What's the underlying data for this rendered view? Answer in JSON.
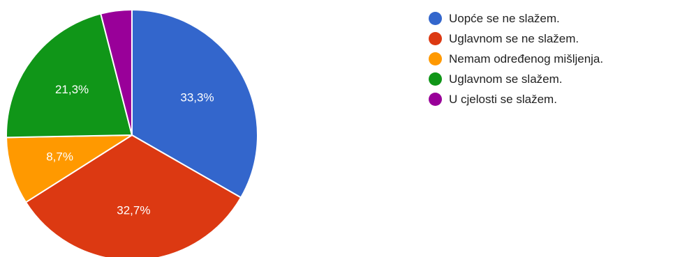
{
  "chart_data": {
    "type": "pie",
    "start_angle_deg": 90,
    "direction": "clockwise",
    "slices": [
      {
        "label": "Uopće se ne slažem.",
        "value": 33.3,
        "value_label": "33,3%",
        "color": "#3366cc"
      },
      {
        "label": "Uglavnom se ne slažem.",
        "value": 32.7,
        "value_label": "32,7%",
        "color": "#dc3912"
      },
      {
        "label": "Nemam određenog mišljenja.",
        "value": 8.7,
        "value_label": "8,7%",
        "color": "#ff9900"
      },
      {
        "label": "Uglavnom se slažem.",
        "value": 21.3,
        "value_label": "21,3%",
        "color": "#109618"
      },
      {
        "label": "U cjelosti se slažem.",
        "value": 4.0,
        "value_label": "",
        "color": "#990099"
      }
    ],
    "legend_position": "right"
  }
}
